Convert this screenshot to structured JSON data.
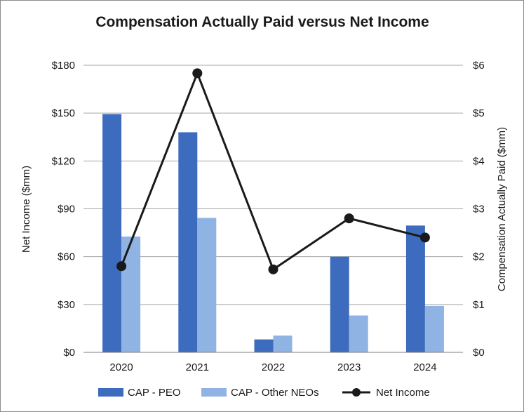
{
  "chart_data": {
    "type": "bar",
    "title": "Compensation Actually Paid versus Net Income",
    "categories": [
      "2020",
      "2021",
      "2022",
      "2023",
      "2024"
    ],
    "ylabel_left": "Net Income ($mm)",
    "ylabel_right": "Compensation Actually Paid ($mm)",
    "ylim_left": [
      0,
      180
    ],
    "ylim_right": [
      0,
      6
    ],
    "yticks_left": [
      "$0",
      "$30",
      "$60",
      "$90",
      "$120",
      "$150",
      "$180"
    ],
    "yticks_right": [
      "$0",
      "$1",
      "$2",
      "$3",
      "$4",
      "$5",
      "$6"
    ],
    "grid": true,
    "legend_position": "bottom",
    "series": [
      {
        "name": "CAP - PEO",
        "kind": "bar",
        "axis": "right",
        "color": "#3d6bbd",
        "values": [
          4.98,
          4.6,
          0.27,
          2.0,
          2.65
        ]
      },
      {
        "name": "CAP - Other NEOs",
        "kind": "bar",
        "axis": "right",
        "color": "#8fb3e2",
        "values": [
          2.42,
          2.81,
          0.35,
          0.77,
          0.97
        ]
      },
      {
        "name": "Net Income",
        "kind": "line",
        "axis": "left",
        "color": "#1a1a1a",
        "values": [
          54,
          175,
          52,
          84,
          72
        ]
      }
    ]
  }
}
